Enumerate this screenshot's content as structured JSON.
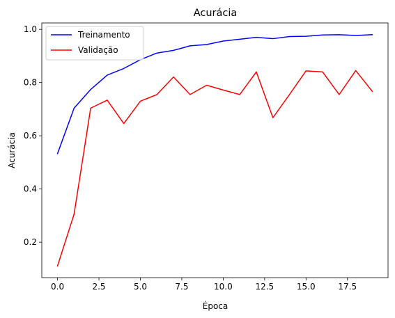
{
  "chart_data": {
    "type": "line",
    "title": "Acurácia",
    "xlabel": "Época",
    "ylabel": "Acurácia",
    "xlim": [
      -0.95,
      19.95
    ],
    "ylim": [
      0.067,
      1.024
    ],
    "xticks": [
      0.0,
      2.5,
      5.0,
      7.5,
      10.0,
      12.5,
      15.0,
      17.5
    ],
    "xtick_labels": [
      "0.0",
      "2.5",
      "5.0",
      "7.5",
      "10.0",
      "12.5",
      "15.0",
      "17.5"
    ],
    "yticks": [
      0.2,
      0.4,
      0.6,
      0.8,
      1.0
    ],
    "ytick_labels": [
      "0.2",
      "0.4",
      "0.6",
      "0.8",
      "1.0"
    ],
    "grid": false,
    "legend_position": "top-left",
    "x": [
      0,
      1,
      2,
      3,
      4,
      5,
      6,
      7,
      8,
      9,
      10,
      11,
      12,
      13,
      14,
      15,
      16,
      17,
      18,
      19
    ],
    "series": [
      {
        "name": "Treinamento",
        "color": "#0000ff",
        "values": [
          0.533,
          0.704,
          0.774,
          0.828,
          0.853,
          0.886,
          0.911,
          0.921,
          0.938,
          0.943,
          0.956,
          0.963,
          0.97,
          0.965,
          0.973,
          0.974,
          0.979,
          0.98,
          0.977,
          0.98
        ]
      },
      {
        "name": "Validação",
        "color": "#ff0000",
        "values": [
          0.111,
          0.306,
          0.704,
          0.734,
          0.646,
          0.73,
          0.755,
          0.821,
          0.755,
          0.79,
          0.772,
          0.755,
          0.84,
          0.668,
          0.755,
          0.844,
          0.84,
          0.755,
          0.845,
          0.767
        ]
      }
    ]
  }
}
